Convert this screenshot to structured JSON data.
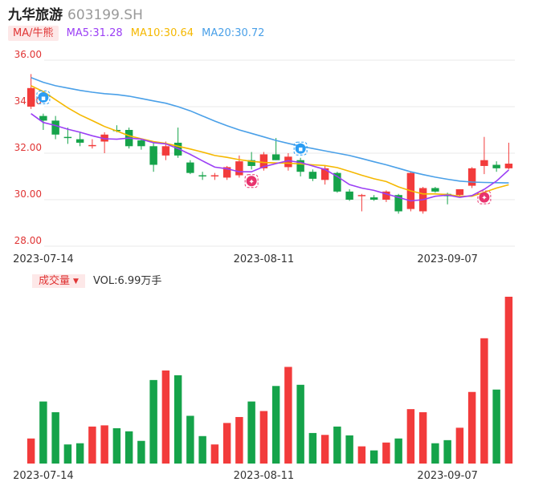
{
  "header": {
    "stock_name": "九华旅游",
    "stock_code": "603199.SH"
  },
  "ma_legend": {
    "tag": "MA/牛熊",
    "items": [
      {
        "label": "MA5:31.28",
        "color": "#9b3ff5"
      },
      {
        "label": "MA10:30.64",
        "color": "#f5b800"
      },
      {
        "label": "MA20:30.72",
        "color": "#4aa0e8"
      }
    ]
  },
  "volume_legend": {
    "tag": "成交量",
    "text": "VOL:6.99万手"
  },
  "colors": {
    "up": "#f23b3b",
    "down": "#15a34a",
    "axis_label": "#e03535",
    "date_label": "#333333",
    "grid": "#e8e8e8",
    "bull_marker": "#e8336d",
    "bear_marker": "#2a9df4"
  },
  "chart_data": [
    {
      "type": "candlestick",
      "yticks": [
        "36.00",
        "34.00",
        "32.00",
        "30.00",
        "28.00"
      ],
      "ylim": [
        28,
        36
      ],
      "grid": true,
      "xtick_labels": [
        {
          "index": 1,
          "label": "2023-07-14"
        },
        {
          "index": 19,
          "label": "2023-08-11"
        },
        {
          "index": 34,
          "label": "2023-09-07"
        }
      ],
      "candles": [
        {
          "o": 34.0,
          "h": 35.4,
          "l": 33.9,
          "c": 34.8
        },
        {
          "o": 33.6,
          "h": 33.7,
          "l": 33.0,
          "c": 33.4
        },
        {
          "o": 33.4,
          "h": 33.6,
          "l": 32.6,
          "c": 32.8
        },
        {
          "o": 32.7,
          "h": 33.1,
          "l": 32.4,
          "c": 32.65
        },
        {
          "o": 32.6,
          "h": 32.9,
          "l": 32.3,
          "c": 32.45
        },
        {
          "o": 32.3,
          "h": 32.6,
          "l": 32.2,
          "c": 32.35
        },
        {
          "o": 32.5,
          "h": 32.9,
          "l": 32.0,
          "c": 32.8
        },
        {
          "o": 33.0,
          "h": 33.2,
          "l": 32.9,
          "c": 32.95
        },
        {
          "o": 33.0,
          "h": 33.1,
          "l": 32.2,
          "c": 32.3
        },
        {
          "o": 32.55,
          "h": 32.6,
          "l": 32.15,
          "c": 32.3
        },
        {
          "o": 32.3,
          "h": 32.45,
          "l": 31.2,
          "c": 31.5
        },
        {
          "o": 31.9,
          "h": 32.5,
          "l": 31.7,
          "c": 32.3
        },
        {
          "o": 32.45,
          "h": 33.1,
          "l": 31.8,
          "c": 31.9
        },
        {
          "o": 31.6,
          "h": 31.7,
          "l": 31.1,
          "c": 31.15
        },
        {
          "o": 31.05,
          "h": 31.2,
          "l": 30.85,
          "c": 31.0
        },
        {
          "o": 31.0,
          "h": 31.15,
          "l": 30.85,
          "c": 31.05
        },
        {
          "o": 30.95,
          "h": 31.45,
          "l": 30.85,
          "c": 31.4
        },
        {
          "o": 31.05,
          "h": 31.9,
          "l": 30.95,
          "c": 31.65
        },
        {
          "o": 31.7,
          "h": 32.05,
          "l": 31.3,
          "c": 31.45
        },
        {
          "o": 31.35,
          "h": 32.05,
          "l": 31.25,
          "c": 31.95
        },
        {
          "o": 31.95,
          "h": 32.65,
          "l": 31.7,
          "c": 31.7
        },
        {
          "o": 31.4,
          "h": 32.0,
          "l": 31.25,
          "c": 31.85
        },
        {
          "o": 31.7,
          "h": 31.8,
          "l": 31.0,
          "c": 31.2
        },
        {
          "o": 31.2,
          "h": 31.3,
          "l": 30.8,
          "c": 30.9
        },
        {
          "o": 30.85,
          "h": 31.45,
          "l": 30.65,
          "c": 31.35
        },
        {
          "o": 31.15,
          "h": 31.2,
          "l": 30.3,
          "c": 30.35
        },
        {
          "o": 30.35,
          "h": 30.45,
          "l": 29.95,
          "c": 30.0
        },
        {
          "o": 30.15,
          "h": 30.25,
          "l": 29.5,
          "c": 30.2
        },
        {
          "o": 30.1,
          "h": 30.2,
          "l": 29.95,
          "c": 30.0
        },
        {
          "o": 30.0,
          "h": 30.4,
          "l": 29.9,
          "c": 30.35
        },
        {
          "o": 30.2,
          "h": 30.25,
          "l": 29.4,
          "c": 29.5
        },
        {
          "o": 29.6,
          "h": 31.2,
          "l": 29.5,
          "c": 31.15
        },
        {
          "o": 29.5,
          "h": 30.55,
          "l": 29.4,
          "c": 30.5
        },
        {
          "o": 30.5,
          "h": 30.55,
          "l": 30.3,
          "c": 30.35
        },
        {
          "o": 30.25,
          "h": 30.3,
          "l": 29.8,
          "c": 30.15
        },
        {
          "o": 30.2,
          "h": 30.45,
          "l": 30.15,
          "c": 30.45
        },
        {
          "o": 30.6,
          "h": 31.4,
          "l": 30.5,
          "c": 31.35
        },
        {
          "o": 31.45,
          "h": 32.7,
          "l": 31.1,
          "c": 31.7
        },
        {
          "o": 31.5,
          "h": 31.65,
          "l": 31.2,
          "c": 31.35
        },
        {
          "o": 31.35,
          "h": 32.45,
          "l": 31.3,
          "c": 31.55
        }
      ],
      "ma5": [
        33.7,
        33.32,
        33.19,
        33.03,
        32.9,
        32.75,
        32.62,
        32.6,
        32.65,
        32.6,
        32.45,
        32.4,
        32.2,
        31.95,
        31.67,
        31.4,
        31.33,
        31.2,
        31.2,
        31.42,
        31.55,
        31.68,
        31.6,
        31.45,
        31.3,
        31.0,
        30.65,
        30.5,
        30.4,
        30.25,
        30.1,
        29.95,
        30.0,
        30.15,
        30.2,
        30.1,
        30.18,
        30.45,
        30.8,
        31.28
      ],
      "ma10": [
        34.9,
        34.65,
        34.3,
        33.95,
        33.65,
        33.4,
        33.15,
        32.95,
        32.75,
        32.62,
        32.5,
        32.42,
        32.3,
        32.18,
        32.05,
        31.9,
        31.82,
        31.72,
        31.65,
        31.6,
        31.58,
        31.57,
        31.54,
        31.5,
        31.47,
        31.38,
        31.22,
        31.05,
        30.9,
        30.78,
        30.55,
        30.38,
        30.25,
        30.25,
        30.22,
        30.15,
        30.15,
        30.32,
        30.5,
        30.64
      ],
      "ma20": [
        35.25,
        35.05,
        34.9,
        34.8,
        34.7,
        34.62,
        34.56,
        34.52,
        34.45,
        34.35,
        34.25,
        34.15,
        34.0,
        33.82,
        33.6,
        33.38,
        33.18,
        33.0,
        32.85,
        32.7,
        32.55,
        32.42,
        32.3,
        32.2,
        32.1,
        32.0,
        31.9,
        31.77,
        31.63,
        31.5,
        31.35,
        31.2,
        31.08,
        30.97,
        30.88,
        30.8,
        30.76,
        30.74,
        30.73,
        30.72
      ]
    },
    {
      "type": "bar",
      "name": "成交量",
      "xtick_labels": [
        {
          "index": 1,
          "label": "2023-07-14"
        },
        {
          "index": 19,
          "label": "2023-08-11"
        },
        {
          "index": 34,
          "label": "2023-09-07"
        }
      ],
      "values": [
        1.05,
        2.6,
        2.15,
        0.8,
        0.85,
        1.55,
        1.6,
        1.48,
        1.35,
        0.95,
        3.5,
        3.9,
        3.7,
        2.0,
        1.15,
        0.8,
        1.7,
        1.95,
        2.6,
        2.2,
        3.25,
        4.05,
        3.3,
        1.28,
        1.2,
        1.55,
        1.18,
        0.72,
        0.55,
        0.88,
        1.05,
        2.28,
        2.15,
        0.85,
        0.98,
        1.5,
        3.0,
        5.25,
        3.1,
        6.99
      ],
      "unit": "万手"
    }
  ]
}
